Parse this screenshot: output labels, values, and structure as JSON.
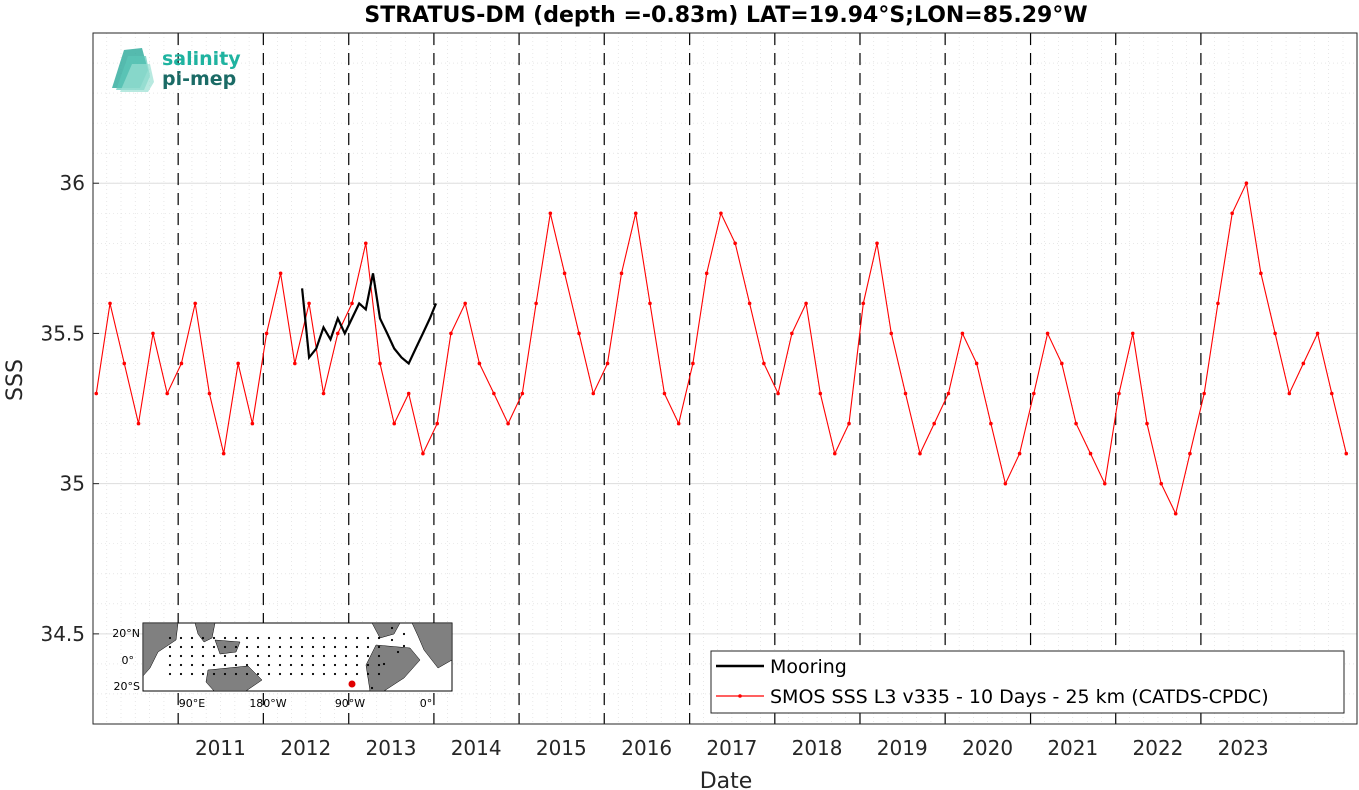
{
  "chart_data": {
    "type": "line",
    "title": "STRATUS-DM (depth =-0.83m) LAT=19.94°S;LON=85.29°W",
    "xlabel": "Date",
    "ylabel": "SSS",
    "x_tick_labels": [
      "2011",
      "2012",
      "2013",
      "2014",
      "2015",
      "2016",
      "2017",
      "2018",
      "2019",
      "2020",
      "2021",
      "2022",
      "2023"
    ],
    "y_ticks": [
      34.5,
      35,
      35.5,
      36
    ],
    "y_tick_labels": [
      "34.5",
      "35",
      "35.5",
      "36"
    ],
    "ylim": [
      34.2,
      36.5
    ],
    "xlim": [
      "2010-01-01",
      "2024-10-31"
    ],
    "grid": true,
    "legend_position": "bottom-right",
    "vertical_dashed_lines_at": [
      "2011-01-01",
      "2012-01-01",
      "2013-01-01",
      "2014-01-01",
      "2015-01-01",
      "2016-01-01",
      "2017-01-01",
      "2018-01-01",
      "2019-01-01",
      "2020-01-01",
      "2021-01-01",
      "2022-01-01",
      "2023-01-01"
    ],
    "series": [
      {
        "name": "Mooring",
        "color": "#000000",
        "x": [
          "2012-06-15",
          "2012-07-15",
          "2012-08-15",
          "2012-09-15",
          "2012-10-15",
          "2012-11-15",
          "2012-12-15",
          "2013-01-15",
          "2013-02-15",
          "2013-03-15",
          "2013-04-15",
          "2013-05-15",
          "2013-06-15",
          "2013-07-15",
          "2013-08-15",
          "2013-09-15",
          "2013-10-15",
          "2013-11-15",
          "2013-12-15",
          "2014-01-10"
        ],
        "y": [
          35.65,
          35.42,
          35.45,
          35.52,
          35.48,
          35.55,
          35.5,
          35.55,
          35.6,
          35.58,
          35.7,
          35.55,
          35.5,
          35.45,
          35.42,
          35.4,
          35.45,
          35.5,
          35.55,
          35.6
        ]
      },
      {
        "name": "SMOS SSS L3 v335 - 10 Days - 25 km (CATDS-CPDC)",
        "color": "#ff0000",
        "x": [
          "2010-01-15",
          "2010-03-15",
          "2010-05-15",
          "2010-07-15",
          "2010-09-15",
          "2010-11-15",
          "2011-01-15",
          "2011-03-15",
          "2011-05-15",
          "2011-07-15",
          "2011-09-15",
          "2011-11-15",
          "2012-01-15",
          "2012-03-15",
          "2012-05-15",
          "2012-07-15",
          "2012-09-15",
          "2012-11-15",
          "2013-01-15",
          "2013-03-15",
          "2013-05-15",
          "2013-07-15",
          "2013-09-15",
          "2013-11-15",
          "2014-01-15",
          "2014-03-15",
          "2014-05-15",
          "2014-07-15",
          "2014-09-15",
          "2014-11-15",
          "2015-01-15",
          "2015-03-15",
          "2015-05-15",
          "2015-07-15",
          "2015-09-15",
          "2015-11-15",
          "2016-01-15",
          "2016-03-15",
          "2016-05-15",
          "2016-07-15",
          "2016-09-15",
          "2016-11-15",
          "2017-01-15",
          "2017-03-15",
          "2017-05-15",
          "2017-07-15",
          "2017-09-15",
          "2017-11-15",
          "2018-01-15",
          "2018-03-15",
          "2018-05-15",
          "2018-07-15",
          "2018-09-15",
          "2018-11-15",
          "2019-01-15",
          "2019-03-15",
          "2019-05-15",
          "2019-07-15",
          "2019-09-15",
          "2019-11-15",
          "2020-01-15",
          "2020-03-15",
          "2020-05-15",
          "2020-07-15",
          "2020-09-15",
          "2020-11-15",
          "2021-01-15",
          "2021-03-15",
          "2021-05-15",
          "2021-07-15",
          "2021-09-15",
          "2021-11-15",
          "2022-01-15",
          "2022-03-15",
          "2022-05-15",
          "2022-07-15",
          "2022-09-15",
          "2022-11-15",
          "2023-01-15",
          "2023-03-15",
          "2023-05-15",
          "2023-07-15",
          "2023-09-15",
          "2023-11-15",
          "2024-01-15",
          "2024-03-15",
          "2024-05-15",
          "2024-07-15",
          "2024-09-15"
        ],
        "y": [
          35.3,
          35.6,
          35.4,
          35.2,
          35.5,
          35.3,
          35.4,
          35.6,
          35.3,
          35.1,
          35.4,
          35.2,
          35.5,
          35.7,
          35.4,
          35.6,
          35.3,
          35.5,
          35.6,
          35.8,
          35.4,
          35.2,
          35.3,
          35.1,
          35.2,
          35.5,
          35.6,
          35.4,
          35.3,
          35.2,
          35.3,
          35.6,
          35.9,
          35.7,
          35.5,
          35.3,
          35.4,
          35.7,
          35.9,
          35.6,
          35.3,
          35.2,
          35.4,
          35.7,
          35.9,
          35.8,
          35.6,
          35.4,
          35.3,
          35.5,
          35.6,
          35.3,
          35.1,
          35.2,
          35.6,
          35.8,
          35.5,
          35.3,
          35.1,
          35.2,
          35.3,
          35.5,
          35.4,
          35.2,
          35.0,
          35.1,
          35.3,
          35.5,
          35.4,
          35.2,
          35.1,
          35.0,
          35.3,
          35.5,
          35.2,
          35.0,
          34.9,
          35.1,
          35.3,
          35.6,
          35.9,
          36.0,
          35.7,
          35.5,
          35.3,
          35.4,
          35.5,
          35.3,
          35.1
        ]
      }
    ]
  },
  "logo": {
    "line1": "salinity",
    "line2": "pi-mep"
  },
  "inset_map": {
    "y_labels": [
      "20°N",
      "0°",
      "20°S"
    ],
    "x_labels": [
      "90°E",
      "180°W",
      "90°W",
      "0°"
    ]
  }
}
